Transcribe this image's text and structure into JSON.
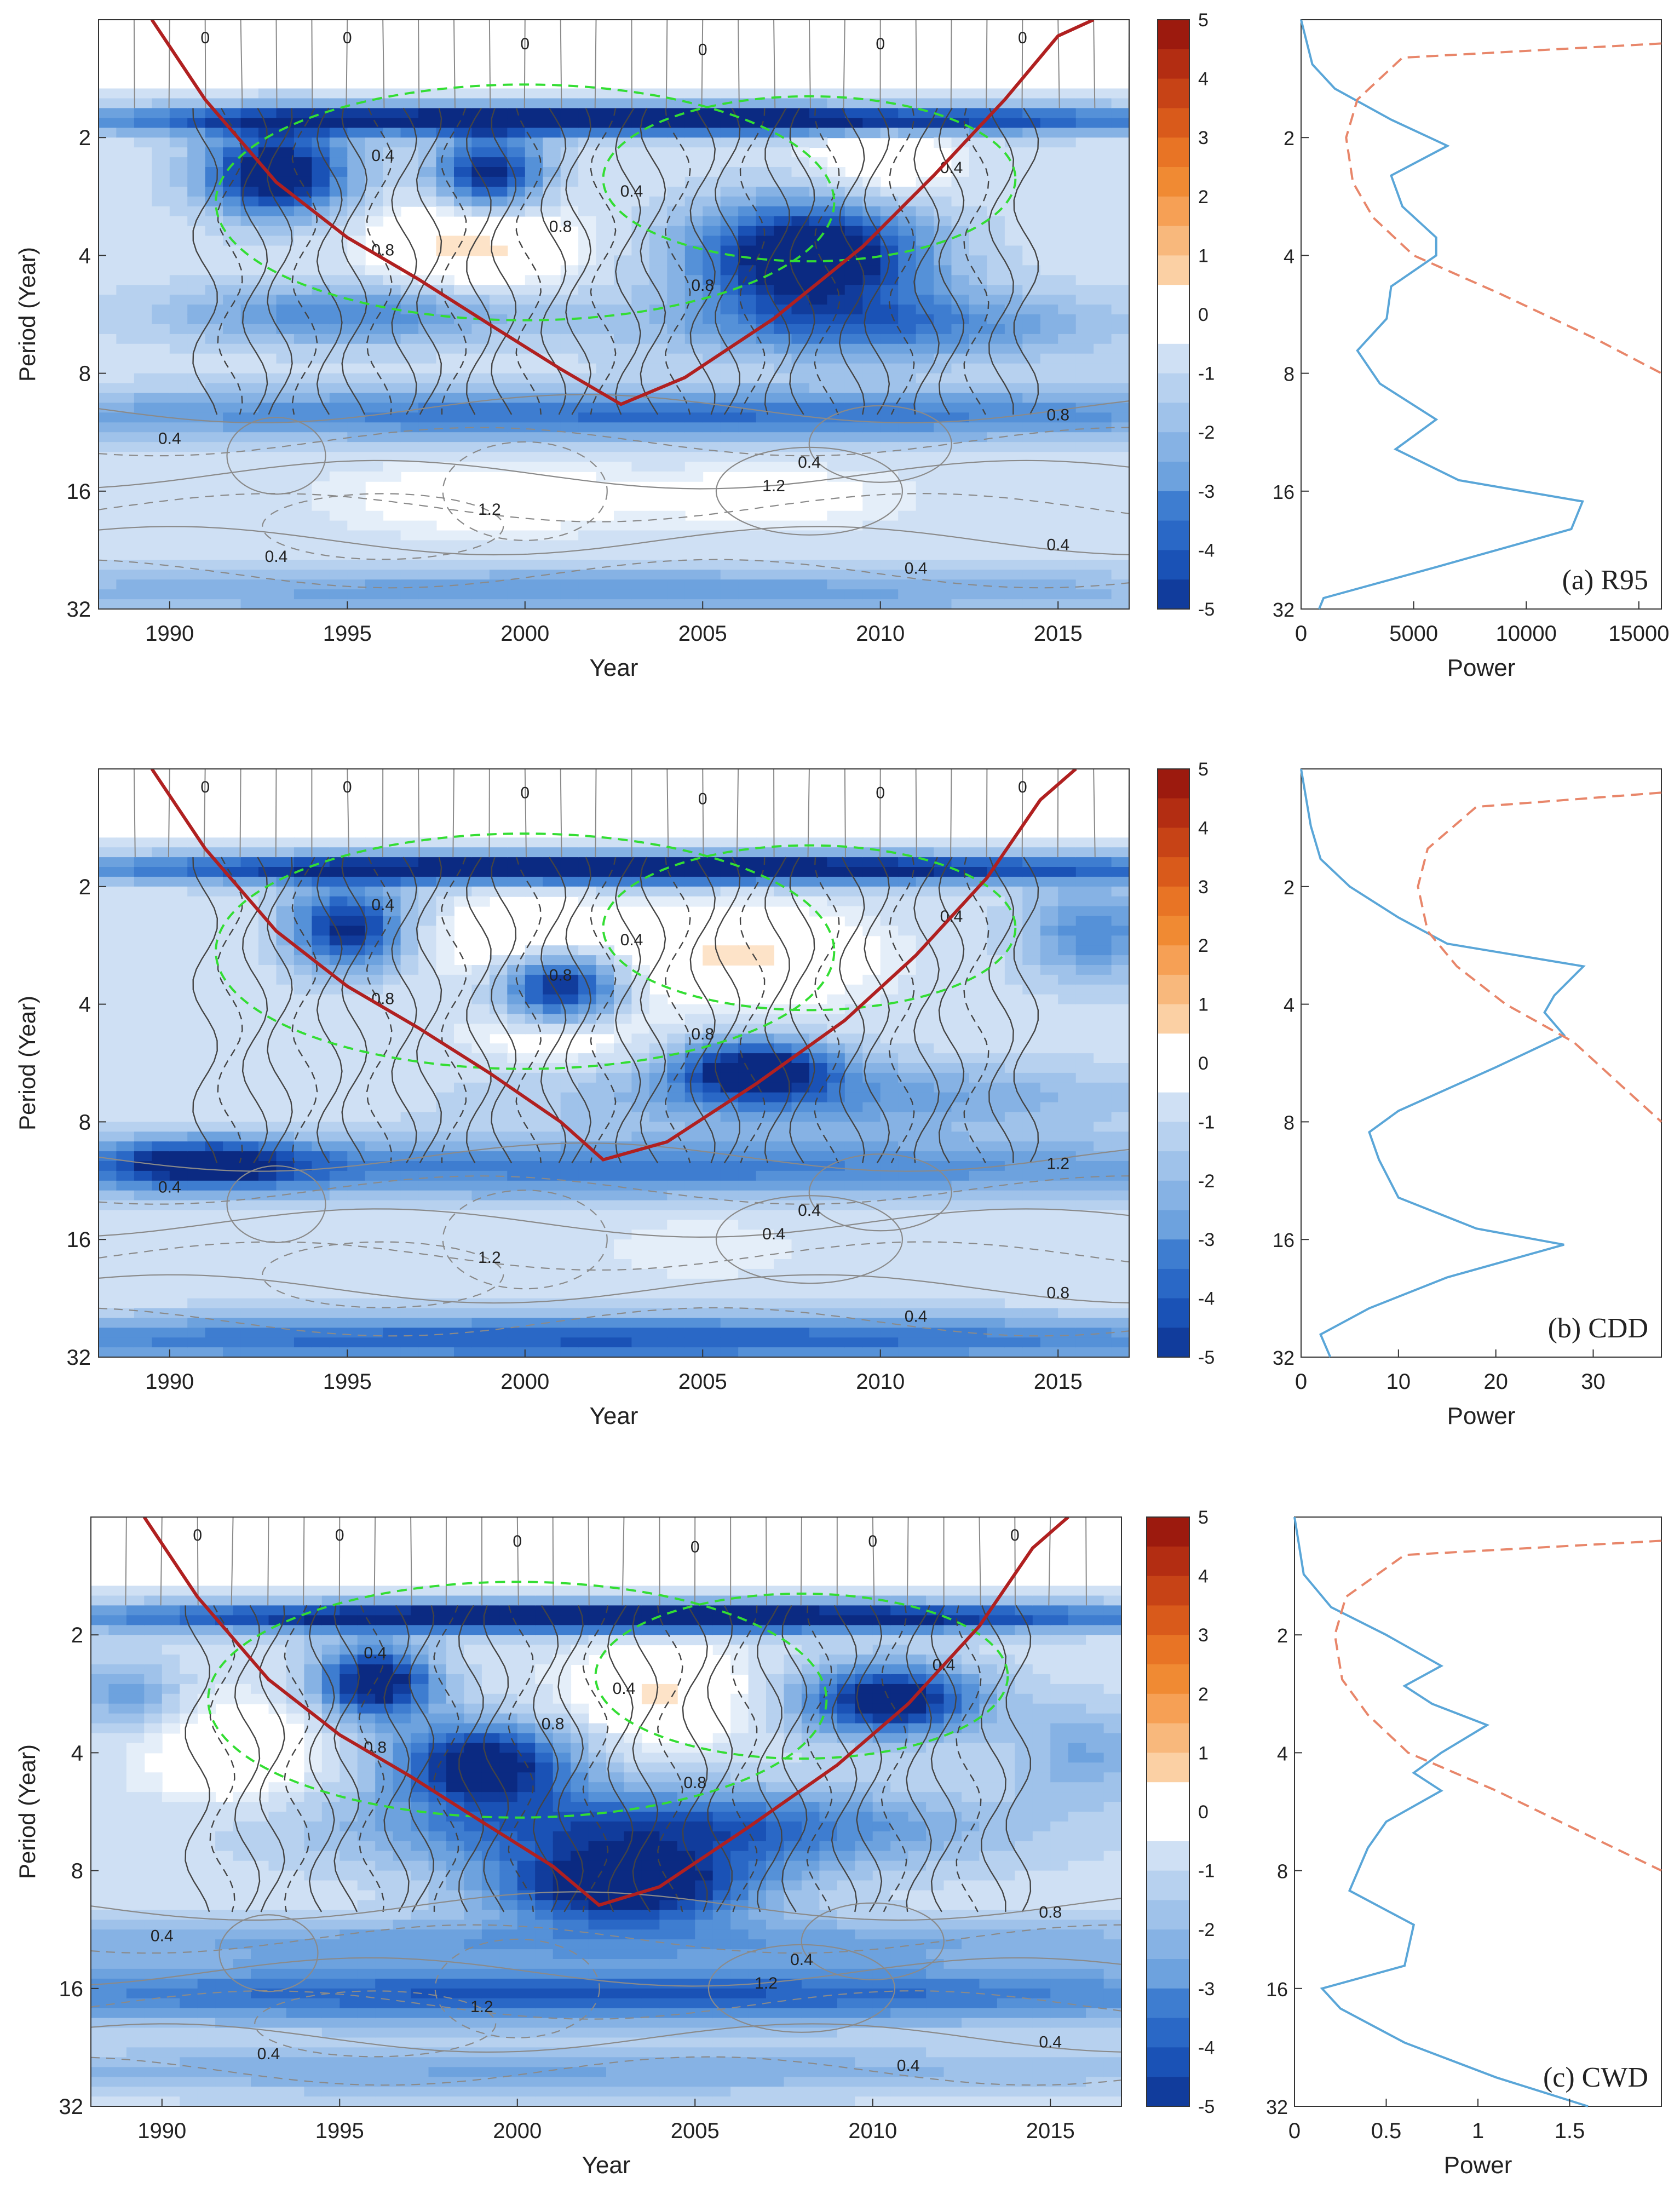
{
  "colors": {
    "coi": "#b02020",
    "significance": "#33dd33",
    "contour": "#444444",
    "contour_light": "#8a8a8a",
    "global_power": "#5aa6d8",
    "significance_power": "#e8866a",
    "pos_ramp": [
      "#fde3c8",
      "#fbd0a4",
      "#f8b87c",
      "#f6a055",
      "#f08a33",
      "#e87425",
      "#d95a1b",
      "#c74316",
      "#b32d12",
      "#9c1a0e"
    ],
    "neg_ramp": [
      "#e4eef9",
      "#cfe0f4",
      "#b7d1ef",
      "#9fc2ea",
      "#86b2e4",
      "#6da2de",
      "#5591d8",
      "#3e7dd0",
      "#2a68c6",
      "#1a52b6",
      "#113c9c",
      "#0b2a82"
    ]
  },
  "chart_data": [
    {
      "type": "heatmap",
      "panel_label": "(a)  R95",
      "xlabel": "Year",
      "ylabel": "Period (Year)",
      "x_range": [
        1988,
        2017
      ],
      "x_ticks": [
        "1990",
        "1995",
        "2000",
        "2005",
        "2010",
        "2015"
      ],
      "y_scale": "log2",
      "y_range": [
        1,
        32
      ],
      "y_ticks": [
        "2",
        "4",
        "8",
        "16",
        "32"
      ],
      "colorbar": {
        "range": [
          -5,
          5
        ],
        "ticks": [
          "5",
          "4",
          "3",
          "2",
          "1",
          "0",
          "-1",
          "-2",
          "-3",
          "-4",
          "-5"
        ]
      },
      "cone_of_influence": {
        "year": [
          1989.5,
          1991,
          1993,
          1995,
          1997,
          1999,
          2001,
          2002.7,
          2004.5,
          2007,
          2009.5,
          2011.5,
          2013.5,
          2015,
          2016
        ],
        "period": [
          1,
          1.6,
          2.6,
          3.6,
          4.6,
          6.0,
          7.8,
          9.6,
          8.2,
          5.8,
          3.8,
          2.5,
          1.6,
          1.1,
          1
        ]
      },
      "contour_labels": [
        "0",
        "0",
        "0",
        "0",
        "0",
        "0",
        "0.4",
        "0.4",
        "0.4",
        "0.4",
        "0.4",
        "0.4",
        "0.8",
        "0.8",
        "0.8",
        "0.8",
        "1.2",
        "1.2",
        "0.4",
        "0.4"
      ],
      "global_wavelet": {
        "xlabel": "Power",
        "x_range": [
          0,
          16000
        ],
        "x_ticks": [
          "0",
          "5000",
          "10000",
          "15000"
        ],
        "period": [
          1,
          1.3,
          1.5,
          1.8,
          2.1,
          2.5,
          3.0,
          3.6,
          4.0,
          4.8,
          5.8,
          7.0,
          8.5,
          10.5,
          12.5,
          15.0,
          17.0,
          20.0,
          25.0,
          30.0,
          32.0
        ],
        "power": [
          0,
          500,
          1500,
          4000,
          6500,
          4000,
          4500,
          6000,
          6000,
          4000,
          3800,
          2500,
          3500,
          6000,
          4200,
          7000,
          12500,
          12000,
          6000,
          1000,
          800
        ],
        "significance_period": [
          1.15,
          1.25,
          1.6,
          2.0,
          2.6,
          3.2,
          4.0,
          5.0,
          6.5,
          8.0
        ],
        "significance_power": [
          16000,
          4500,
          2500,
          2000,
          2300,
          3200,
          5000,
          8800,
          13000,
          16000
        ]
      }
    },
    {
      "type": "heatmap",
      "panel_label": "(b) CDD",
      "xlabel": "Year",
      "ylabel": "Period (Year)",
      "x_range": [
        1988,
        2017
      ],
      "x_ticks": [
        "1990",
        "1995",
        "2000",
        "2005",
        "2010",
        "2015"
      ],
      "y_scale": "log2",
      "y_range": [
        1,
        32
      ],
      "y_ticks": [
        "2",
        "4",
        "8",
        "16",
        "32"
      ],
      "colorbar": {
        "range": [
          -5,
          5
        ],
        "ticks": [
          "5",
          "4",
          "3",
          "2",
          "1",
          "0",
          "-1",
          "-2",
          "-3",
          "-4",
          "-5"
        ]
      },
      "cone_of_influence": {
        "year": [
          1989.5,
          1991,
          1993,
          1995,
          1997,
          1999,
          2001,
          2002.2,
          2004,
          2006.5,
          2009,
          2011,
          2013,
          2014.5,
          2015.5
        ],
        "period": [
          1,
          1.6,
          2.6,
          3.6,
          4.6,
          6.0,
          8.0,
          10.0,
          9.0,
          6.4,
          4.4,
          3.0,
          1.9,
          1.2,
          1
        ]
      },
      "contour_labels": [
        "0",
        "0",
        "0",
        "0",
        "0",
        "0",
        "0.4",
        "0.4",
        "0.4",
        "0.4",
        "0.4",
        "0.8",
        "0.8",
        "0.8",
        "0.8",
        "1.2",
        "1.2",
        "0.4",
        "0.4"
      ],
      "global_wavelet": {
        "xlabel": "Power",
        "x_range": [
          0,
          37
        ],
        "x_ticks": [
          "0",
          "10",
          "20",
          "30"
        ],
        "period": [
          1,
          1.4,
          1.7,
          2.0,
          2.4,
          2.8,
          3.2,
          3.8,
          4.2,
          4.8,
          5.8,
          7.5,
          8.5,
          10.0,
          12.5,
          15.0,
          16.5,
          20.0,
          24.0,
          28.0,
          32.0
        ],
        "power": [
          0,
          1,
          2,
          5,
          10,
          15,
          29,
          26,
          25,
          27,
          20,
          10,
          7,
          8,
          10,
          18,
          27,
          15,
          7,
          2,
          3
        ],
        "significance_period": [
          1.15,
          1.25,
          1.6,
          2.0,
          2.6,
          3.2,
          4.0,
          5.0,
          6.5,
          8.0
        ],
        "significance_power": [
          37,
          18,
          13,
          12,
          13,
          16,
          21,
          28,
          33,
          37
        ]
      }
    },
    {
      "type": "heatmap",
      "panel_label": "(c) CWD",
      "xlabel": "Year",
      "ylabel": "Period (Year)",
      "x_range": [
        1988,
        2017
      ],
      "x_ticks": [
        "1990",
        "1995",
        "2000",
        "2005",
        "2010",
        "2015"
      ],
      "y_scale": "log2",
      "y_range": [
        1,
        32
      ],
      "y_ticks": [
        "2",
        "4",
        "8",
        "16",
        "32"
      ],
      "colorbar": {
        "range": [
          -5,
          5
        ],
        "ticks": [
          "5",
          "4",
          "3",
          "2",
          "1",
          "0",
          "-1",
          "-2",
          "-3",
          "-4",
          "-5"
        ]
      },
      "cone_of_influence": {
        "year": [
          1989.5,
          1991,
          1993,
          1995,
          1997,
          1999,
          2001,
          2002.3,
          2004,
          2006.5,
          2009,
          2011,
          2013,
          2014.5,
          2015.5
        ],
        "period": [
          1,
          1.6,
          2.6,
          3.6,
          4.6,
          6.0,
          7.8,
          9.8,
          8.8,
          6.2,
          4.3,
          3.0,
          1.9,
          1.2,
          1
        ]
      },
      "contour_labels": [
        "0",
        "0",
        "0",
        "0",
        "0",
        "0",
        "0.4",
        "0.4",
        "0.4",
        "0.4",
        "0.4",
        "0.4",
        "0.8",
        "0.8",
        "0.8",
        "0.8",
        "1.2",
        "1.2",
        "0.4",
        "0.4"
      ],
      "global_wavelet": {
        "xlabel": "Power",
        "x_range": [
          0,
          2
        ],
        "x_ticks": [
          "0",
          "0.5",
          "1",
          "1.5"
        ],
        "period": [
          1,
          1.4,
          1.7,
          2.0,
          2.4,
          2.7,
          3.0,
          3.4,
          4.0,
          4.5,
          5.0,
          6.0,
          7.0,
          9.0,
          11.0,
          14.0,
          16.0,
          18.0,
          22.0,
          27.0,
          32.0
        ],
        "power": [
          0,
          0.05,
          0.2,
          0.5,
          0.8,
          0.6,
          0.75,
          1.05,
          0.8,
          0.65,
          0.8,
          0.5,
          0.4,
          0.3,
          0.65,
          0.6,
          0.15,
          0.25,
          0.6,
          1.1,
          1.6
        ],
        "significance_period": [
          1.15,
          1.25,
          1.6,
          2.0,
          2.6,
          3.2,
          4.0,
          5.0,
          6.5,
          8.0
        ],
        "significance_power": [
          2.0,
          0.6,
          0.28,
          0.22,
          0.26,
          0.4,
          0.62,
          1.1,
          1.6,
          2.0
        ]
      }
    }
  ]
}
